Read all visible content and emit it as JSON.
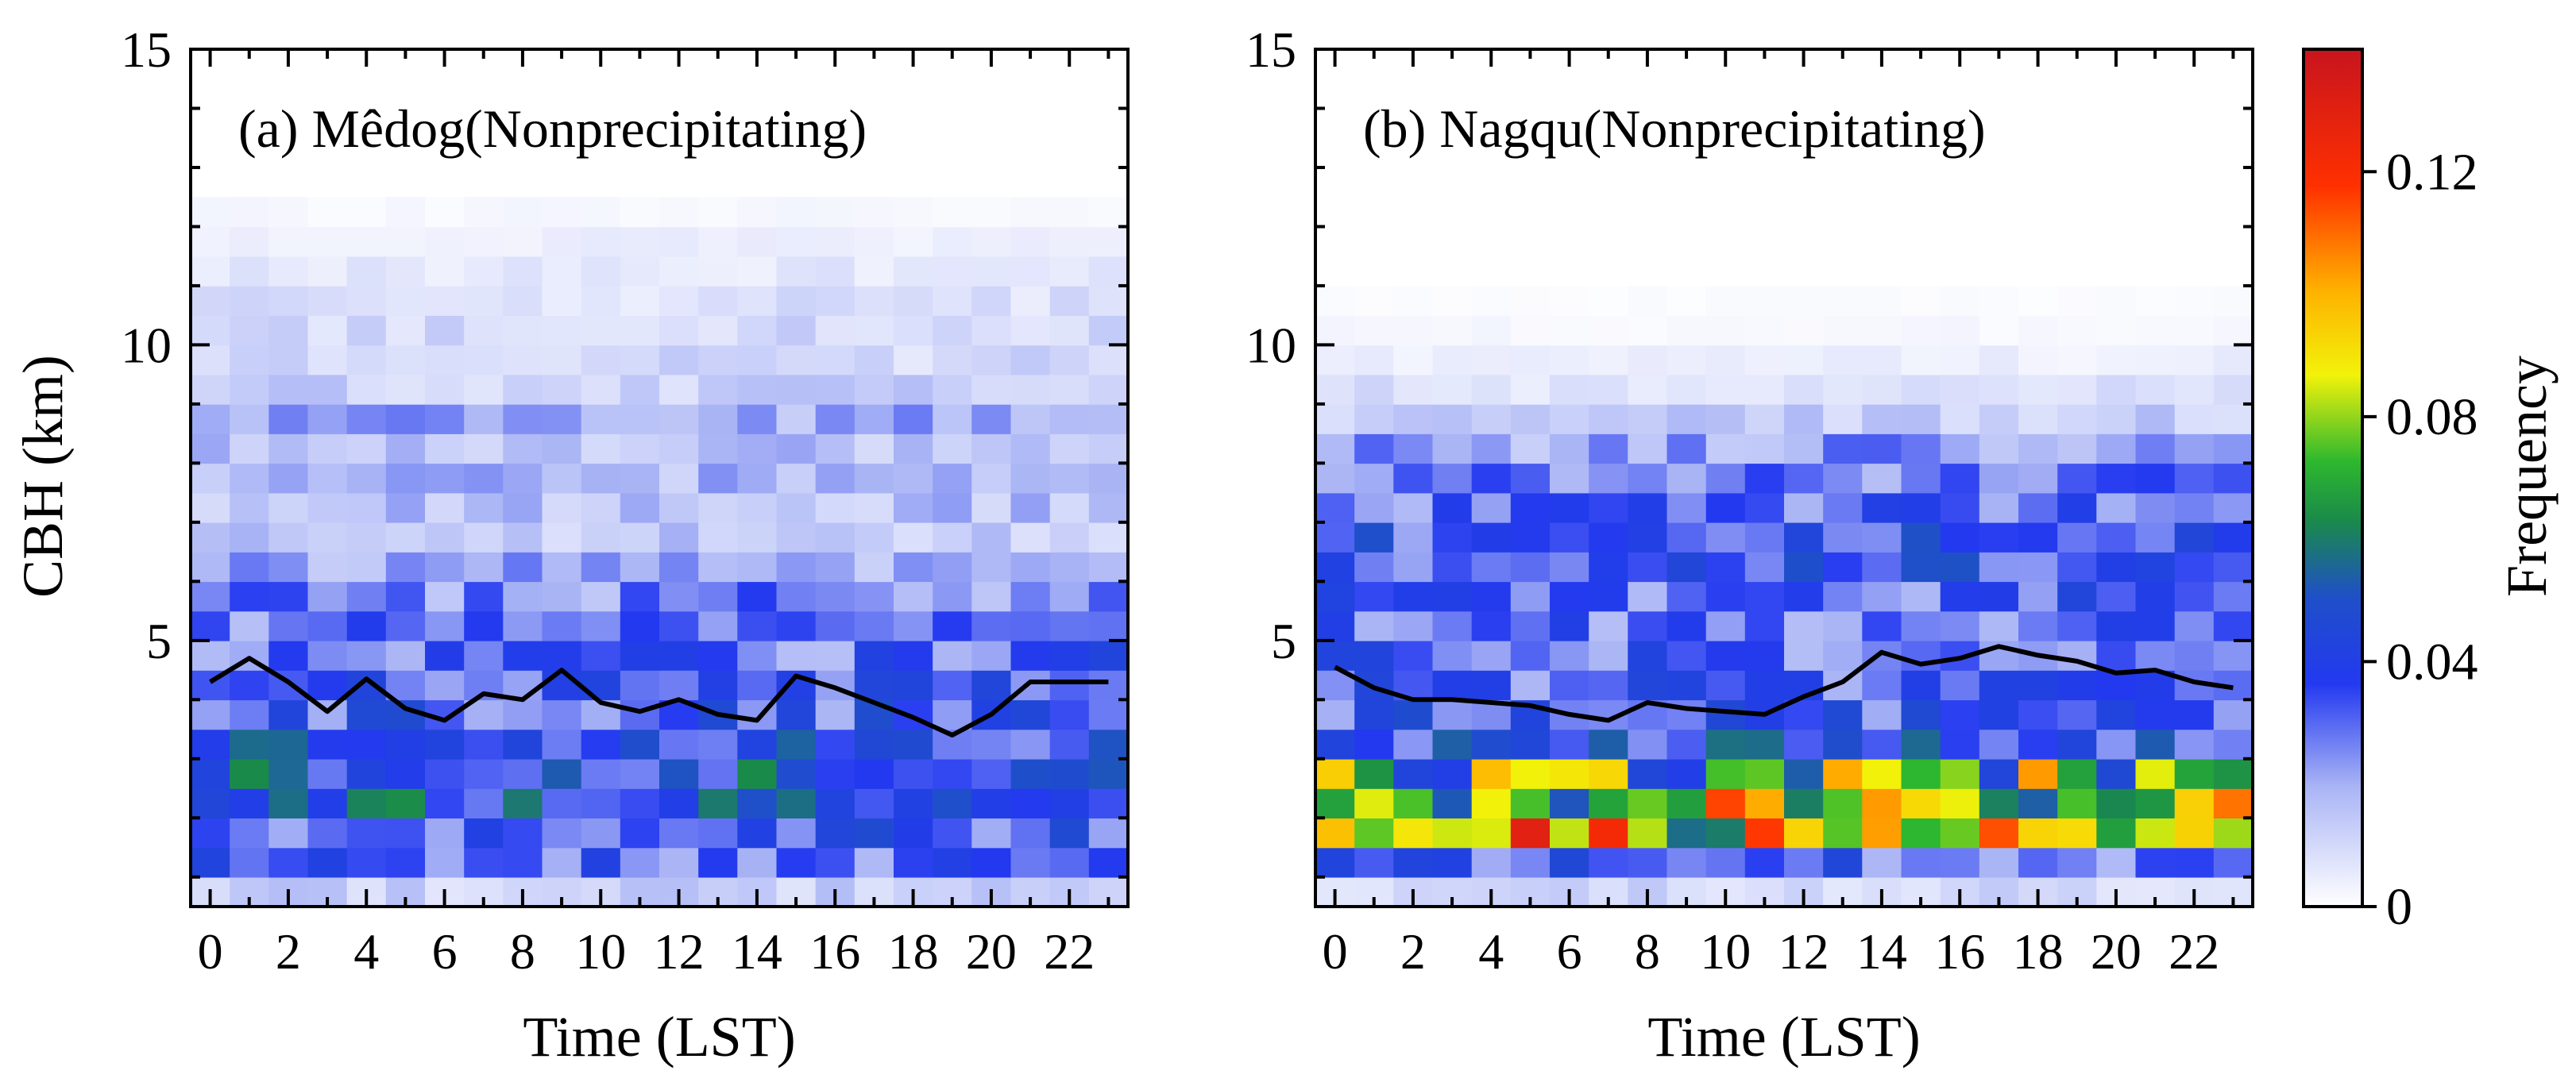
{
  "figure": {
    "panels": [
      {
        "id": "a",
        "title": "(a) Mêdog(Nonprecipitating)",
        "xlabel": "Time (LST)",
        "ylabel": "CBH (km)",
        "xticks": [
          "0",
          "2",
          "4",
          "6",
          "8",
          "10",
          "12",
          "14",
          "16",
          "18",
          "20",
          "22"
        ],
        "yticks": [
          "5",
          "10",
          "15"
        ]
      },
      {
        "id": "b",
        "title": "(b) Nagqu(Nonprecipitating)",
        "xlabel": "Time (LST)",
        "ylabel": "",
        "xticks": [
          "0",
          "2",
          "4",
          "6",
          "8",
          "10",
          "12",
          "14",
          "16",
          "18",
          "20",
          "22"
        ],
        "yticks": [
          "5",
          "10",
          "15"
        ]
      }
    ],
    "colorbar": {
      "label": "Frequency",
      "ticks": [
        "0",
        "0.04",
        "0.08",
        "0.12"
      ]
    }
  },
  "chart_data": [
    {
      "type": "heatmap",
      "title": "(a) Mêdog(Nonprecipitating)",
      "xlabel": "Time (LST)",
      "ylabel": "CBH (km)",
      "xlim": [
        -0.5,
        23.5
      ],
      "ylim": [
        0.5,
        15
      ],
      "colormap": "white-blue-green-yellow-red",
      "vlim": [
        0,
        0.14
      ],
      "hours": [
        0,
        1,
        2,
        3,
        4,
        5,
        6,
        7,
        8,
        9,
        10,
        11,
        12,
        13,
        14,
        15,
        16,
        17,
        18,
        19,
        20,
        21,
        22,
        23
      ],
      "bin_height_km": 0.5,
      "frequency_profile": {
        "heights_km": [
          0.75,
          1.25,
          1.75,
          2.25,
          2.75,
          3.25,
          3.75,
          4.25,
          4.75,
          5.25,
          5.75,
          6.25,
          6.75,
          7.25,
          7.75,
          8.25,
          8.75,
          9.25,
          9.75,
          10.25,
          10.75,
          11.25,
          11.75,
          12.25
        ],
        "mean_frequency": [
          0.012,
          0.03,
          0.036,
          0.045,
          0.045,
          0.04,
          0.034,
          0.032,
          0.03,
          0.028,
          0.026,
          0.02,
          0.014,
          0.016,
          0.018,
          0.016,
          0.02,
          0.012,
          0.01,
          0.01,
          0.008,
          0.006,
          0.004,
          0.002
        ]
      },
      "line": {
        "name": "mean CBH",
        "x": [
          0,
          1,
          2,
          3,
          4,
          5,
          6,
          7,
          8,
          9,
          10,
          11,
          12,
          13,
          14,
          15,
          16,
          17,
          18,
          19,
          20,
          21,
          22,
          23
        ],
        "y": [
          4.3,
          4.7,
          4.3,
          3.8,
          4.35,
          3.85,
          3.65,
          4.1,
          4.0,
          4.5,
          3.95,
          3.8,
          4.0,
          3.75,
          3.65,
          4.4,
          4.2,
          3.95,
          3.7,
          3.4,
          3.75,
          4.3,
          4.3,
          4.3
        ]
      }
    },
    {
      "type": "heatmap",
      "title": "(b) Nagqu(Nonprecipitating)",
      "xlabel": "Time (LST)",
      "ylabel": "",
      "xlim": [
        -0.5,
        23.5
      ],
      "ylim": [
        0.5,
        15
      ],
      "colormap": "white-blue-green-yellow-red",
      "vlim": [
        0,
        0.14
      ],
      "hours": [
        0,
        1,
        2,
        3,
        4,
        5,
        6,
        7,
        8,
        9,
        10,
        11,
        12,
        13,
        14,
        15,
        16,
        17,
        18,
        19,
        20,
        21,
        22,
        23
      ],
      "bin_height_km": 0.5,
      "frequency_profile": {
        "heights_km": [
          0.75,
          1.25,
          1.75,
          2.25,
          2.75,
          3.25,
          3.75,
          4.25,
          4.75,
          5.25,
          5.75,
          6.25,
          6.75,
          7.25,
          7.75,
          8.25,
          8.75,
          9.25,
          9.75,
          10.25,
          10.75,
          11.25,
          11.75,
          12.25
        ],
        "mean_frequency": [
          0.01,
          0.032,
          0.09,
          0.085,
          0.07,
          0.04,
          0.035,
          0.032,
          0.03,
          0.03,
          0.032,
          0.035,
          0.035,
          0.03,
          0.028,
          0.022,
          0.014,
          0.008,
          0.004,
          0.002,
          0.001,
          0.0,
          0.0,
          0.0
        ]
      },
      "line": {
        "name": "mean CBH",
        "x": [
          0,
          1,
          2,
          3,
          4,
          5,
          6,
          7,
          8,
          9,
          10,
          11,
          12,
          13,
          14,
          15,
          16,
          17,
          18,
          19,
          20,
          21,
          22,
          23
        ],
        "y": [
          4.55,
          4.2,
          4.0,
          4.0,
          3.95,
          3.9,
          3.75,
          3.65,
          3.95,
          3.85,
          3.8,
          3.75,
          4.05,
          4.3,
          4.8,
          4.6,
          4.7,
          4.9,
          4.75,
          4.65,
          4.45,
          4.5,
          4.3,
          4.2
        ]
      }
    }
  ]
}
